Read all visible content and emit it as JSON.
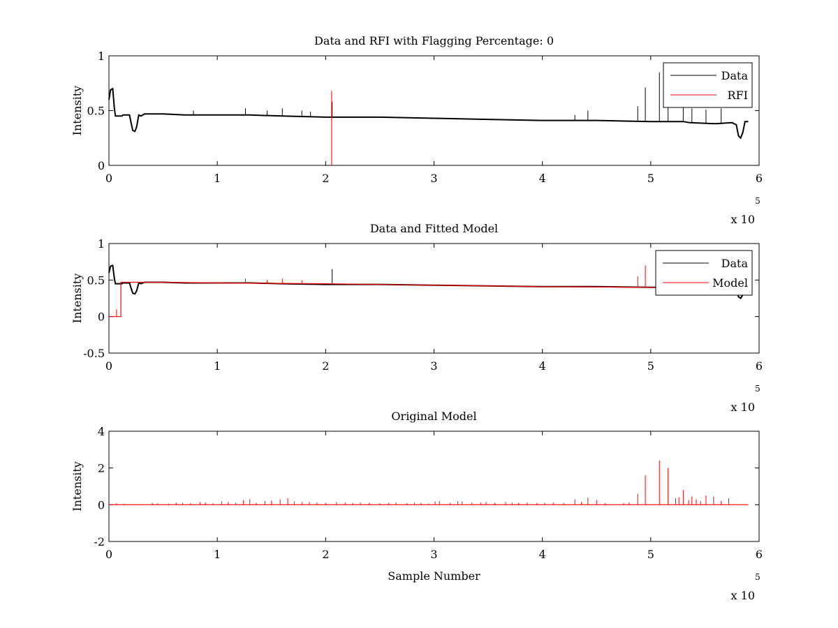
{
  "chart_data": [
    {
      "type": "line",
      "title": "Data and RFI with Flagging Percentage: 0",
      "xlabel": "",
      "ylabel": "Intensity",
      "xlim": [
        0,
        600000
      ],
      "ylim": [
        0,
        1
      ],
      "xticks": [
        0,
        1,
        2,
        3,
        4,
        5,
        6
      ],
      "yticks": [
        0,
        0.5,
        1
      ],
      "ytick_labels": [
        "0",
        "0.5",
        "1"
      ],
      "x_multiplier_base": "x 10",
      "x_multiplier_exp": "5",
      "legend": {
        "placement": "top-right",
        "entries": [
          "Data",
          "RFI"
        ]
      },
      "series": [
        {
          "name": "Data",
          "color": "#000000",
          "points": [
            [
              0,
              0.6
            ],
            [
              1500,
              0.69
            ],
            [
              3500,
              0.7
            ],
            [
              5000,
              0.52
            ],
            [
              6000,
              0.45
            ],
            [
              12000,
              0.45
            ],
            [
              13000,
              0.46
            ],
            [
              19000,
              0.46
            ],
            [
              20000,
              0.41
            ],
            [
              22000,
              0.32
            ],
            [
              24000,
              0.31
            ],
            [
              25500,
              0.35
            ],
            [
              27500,
              0.46
            ],
            [
              29500,
              0.45
            ],
            [
              33000,
              0.47
            ],
            [
              50000,
              0.47
            ],
            [
              70000,
              0.46
            ],
            [
              100000,
              0.46
            ],
            [
              130000,
              0.46
            ],
            [
              160000,
              0.45
            ],
            [
              200000,
              0.44
            ],
            [
              250000,
              0.44
            ],
            [
              300000,
              0.43
            ],
            [
              350000,
              0.42
            ],
            [
              400000,
              0.41
            ],
            [
              450000,
              0.41
            ],
            [
              500000,
              0.4
            ],
            [
              530000,
              0.4
            ],
            [
              536000,
              0.39
            ],
            [
              560000,
              0.38
            ],
            [
              575000,
              0.39
            ],
            [
              579000,
              0.37
            ],
            [
              581000,
              0.27
            ],
            [
              583000,
              0.25
            ],
            [
              585000,
              0.3
            ],
            [
              587000,
              0.4
            ],
            [
              590000,
              0.4
            ]
          ],
          "spikes": [
            [
              78000,
              0.5
            ],
            [
              126000,
              0.52
            ],
            [
              146000,
              0.5
            ],
            [
              160000,
              0.52
            ],
            [
              178000,
              0.5
            ],
            [
              186000,
              0.49
            ],
            [
              206000,
              0.58
            ],
            [
              430000,
              0.46
            ],
            [
              442000,
              0.5
            ],
            [
              488000,
              0.54
            ],
            [
              495000,
              0.71
            ],
            [
              508000,
              0.85
            ],
            [
              516000,
              0.8
            ],
            [
              530000,
              0.56
            ],
            [
              538000,
              0.52
            ],
            [
              551000,
              0.51
            ],
            [
              565000,
              0.52
            ]
          ]
        },
        {
          "name": "RFI",
          "color": "#ff0000",
          "points": [],
          "spikes": [
            [
              205500,
              0.68
            ]
          ]
        }
      ]
    },
    {
      "type": "line",
      "title": "Data and Fitted Model",
      "xlabel": "",
      "ylabel": "Intensity",
      "xlim": [
        0,
        600000
      ],
      "ylim": [
        -0.5,
        1
      ],
      "xticks": [
        0,
        1,
        2,
        3,
        4,
        5,
        6
      ],
      "yticks": [
        -0.5,
        0,
        0.5,
        1
      ],
      "ytick_labels": [
        "-0.5",
        "0",
        "0.5",
        "1"
      ],
      "x_multiplier_base": "x 10",
      "x_multiplier_exp": "5",
      "legend": {
        "placement": "top-right",
        "entries": [
          "Data",
          "Model"
        ]
      },
      "series": [
        {
          "name": "Data",
          "color": "#000000",
          "points": [
            [
              0,
              0.6
            ],
            [
              1500,
              0.69
            ],
            [
              3500,
              0.7
            ],
            [
              5000,
              0.52
            ],
            [
              6000,
              0.45
            ],
            [
              12000,
              0.45
            ],
            [
              13000,
              0.46
            ],
            [
              19000,
              0.46
            ],
            [
              20000,
              0.41
            ],
            [
              22000,
              0.32
            ],
            [
              24000,
              0.31
            ],
            [
              25500,
              0.35
            ],
            [
              27500,
              0.46
            ],
            [
              29500,
              0.45
            ],
            [
              33000,
              0.47
            ],
            [
              50000,
              0.47
            ],
            [
              70000,
              0.46
            ],
            [
              100000,
              0.46
            ],
            [
              130000,
              0.46
            ],
            [
              160000,
              0.45
            ],
            [
              200000,
              0.44
            ],
            [
              250000,
              0.44
            ],
            [
              300000,
              0.43
            ],
            [
              350000,
              0.42
            ],
            [
              400000,
              0.41
            ],
            [
              450000,
              0.41
            ],
            [
              500000,
              0.4
            ],
            [
              530000,
              0.4
            ],
            [
              560000,
              0.39
            ],
            [
              579000,
              0.37
            ],
            [
              581000,
              0.27
            ],
            [
              583000,
              0.25
            ],
            [
              585000,
              0.3
            ],
            [
              587000,
              0.4
            ],
            [
              590000,
              0.4
            ]
          ],
          "spikes": [
            [
              206000,
              0.65
            ]
          ]
        },
        {
          "name": "Model",
          "color": "#ff0000",
          "points": [
            [
              0,
              0
            ],
            [
              11000,
              0
            ],
            [
              11000,
              0.47
            ],
            [
              50000,
              0.47
            ],
            [
              100000,
              0.46
            ],
            [
              200000,
              0.45
            ],
            [
              300000,
              0.43
            ],
            [
              400000,
              0.41
            ],
            [
              500000,
              0.4
            ],
            [
              530000,
              0.4
            ]
          ],
          "spikes": [
            [
              7000,
              0.1
            ],
            [
              126000,
              0.52
            ],
            [
              146000,
              0.5
            ],
            [
              160000,
              0.52
            ],
            [
              178000,
              0.5
            ],
            [
              488000,
              0.55
            ],
            [
              495000,
              0.7
            ]
          ]
        }
      ]
    },
    {
      "type": "line",
      "title": "Original Model",
      "xlabel": "Sample Number",
      "ylabel": "Intensity",
      "xlim": [
        0,
        600000
      ],
      "ylim": [
        -2,
        4
      ],
      "xticks": [
        0,
        1,
        2,
        3,
        4,
        5,
        6
      ],
      "yticks": [
        -2,
        0,
        2,
        4
      ],
      "ytick_labels": [
        "-2",
        "0",
        "2",
        "4"
      ],
      "x_multiplier_base": "x 10",
      "x_multiplier_exp": "5",
      "legend": null,
      "series": [
        {
          "name": "",
          "color": "#ff0000",
          "points": [
            [
              0,
              0
            ],
            [
              590000,
              0
            ]
          ],
          "spikes": [
            [
              7000,
              0.08
            ],
            [
              14000,
              0.05
            ],
            [
              40000,
              0.1
            ],
            [
              45000,
              0.08
            ],
            [
              55000,
              0.06
            ],
            [
              62000,
              0.12
            ],
            [
              68000,
              0.1
            ],
            [
              75000,
              0.08
            ],
            [
              84000,
              0.15
            ],
            [
              89000,
              0.12
            ],
            [
              96000,
              0.08
            ],
            [
              104000,
              0.18
            ],
            [
              110000,
              0.15
            ],
            [
              117000,
              0.1
            ],
            [
              124000,
              0.25
            ],
            [
              130000,
              0.3
            ],
            [
              136000,
              0.1
            ],
            [
              144000,
              0.2
            ],
            [
              150000,
              0.22
            ],
            [
              158000,
              0.3
            ],
            [
              165000,
              0.35
            ],
            [
              171000,
              0.18
            ],
            [
              178000,
              0.15
            ],
            [
              185000,
              0.15
            ],
            [
              192000,
              0.12
            ],
            [
              200000,
              0.1
            ],
            [
              210000,
              0.15
            ],
            [
              218000,
              0.12
            ],
            [
              225000,
              0.1
            ],
            [
              232000,
              0.12
            ],
            [
              240000,
              0.1
            ],
            [
              250000,
              0.08
            ],
            [
              258000,
              0.1
            ],
            [
              265000,
              0.12
            ],
            [
              275000,
              0.08
            ],
            [
              282000,
              0.12
            ],
            [
              288000,
              0.1
            ],
            [
              295000,
              0.06
            ],
            [
              301000,
              0.18
            ],
            [
              305000,
              0.2
            ],
            [
              315000,
              0.1
            ],
            [
              322000,
              0.2
            ],
            [
              326000,
              0.18
            ],
            [
              335000,
              0.12
            ],
            [
              343000,
              0.12
            ],
            [
              348000,
              0.15
            ],
            [
              356000,
              0.1
            ],
            [
              366000,
              0.15
            ],
            [
              372000,
              0.12
            ],
            [
              378000,
              0.1
            ],
            [
              386000,
              0.12
            ],
            [
              395000,
              0.1
            ],
            [
              402000,
              0.1
            ],
            [
              410000,
              0.12
            ],
            [
              420000,
              0.1
            ],
            [
              430000,
              0.3
            ],
            [
              436000,
              0.15
            ],
            [
              442000,
              0.38
            ],
            [
              450000,
              0.25
            ],
            [
              458000,
              0.08
            ],
            [
              475000,
              0.1
            ],
            [
              480000,
              0.12
            ],
            [
              488000,
              0.6
            ],
            [
              495000,
              1.6
            ],
            [
              508000,
              2.4
            ],
            [
              516000,
              2.0
            ],
            [
              523000,
              0.35
            ],
            [
              526000,
              0.4
            ],
            [
              530000,
              0.8
            ],
            [
              535000,
              0.25
            ],
            [
              538000,
              0.45
            ],
            [
              542000,
              0.3
            ],
            [
              546000,
              0.2
            ],
            [
              551000,
              0.5
            ],
            [
              558000,
              0.45
            ],
            [
              565000,
              0.2
            ],
            [
              572000,
              0.35
            ]
          ]
        }
      ]
    }
  ]
}
